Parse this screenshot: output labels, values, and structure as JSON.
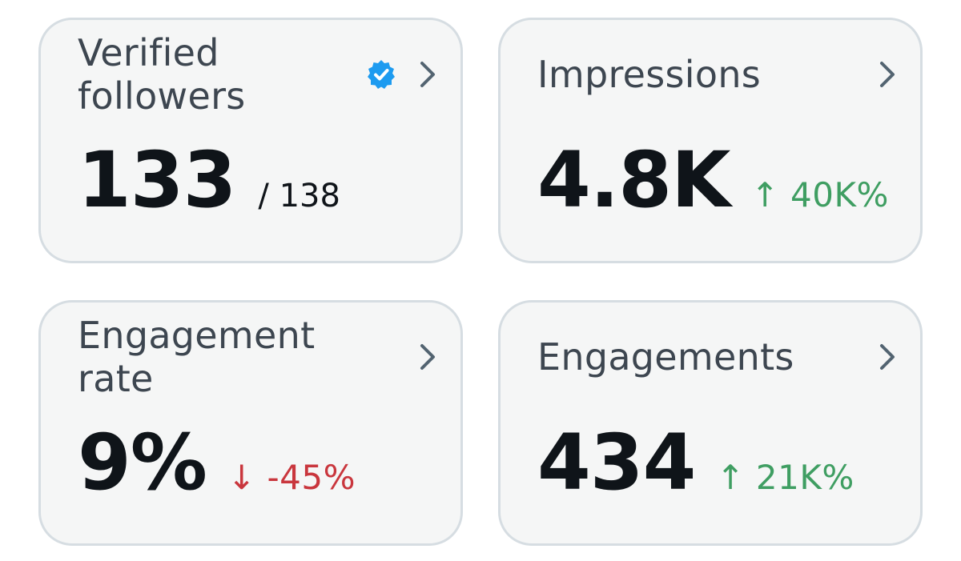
{
  "colors": {
    "card_background": "#f5f6f6",
    "card_border": "#d6dde2",
    "title_text": "#3d4650",
    "metric_text": "#0f1419",
    "positive_change": "#3f9e62",
    "negative_change": "#c9363d",
    "verified_badge": "#1d9bf0",
    "chevron": "#536471"
  },
  "cards": {
    "verified_followers": {
      "title": "Verified followers",
      "value": "133",
      "total": "/ 138",
      "badge_icon": "verified-badge-icon",
      "chevron_icon": "chevron-right-icon"
    },
    "impressions": {
      "title": "Impressions",
      "value": "4.8K",
      "change": "↑ 40K%",
      "change_direction": "up",
      "chevron_icon": "chevron-right-icon"
    },
    "engagement_rate": {
      "title": "Engagement rate",
      "value": "9%",
      "change": "↓ -45%",
      "change_direction": "down",
      "chevron_icon": "chevron-right-icon"
    },
    "engagements": {
      "title": "Engagements",
      "value": "434",
      "change": "↑ 21K%",
      "change_direction": "up",
      "chevron_icon": "chevron-right-icon"
    }
  }
}
